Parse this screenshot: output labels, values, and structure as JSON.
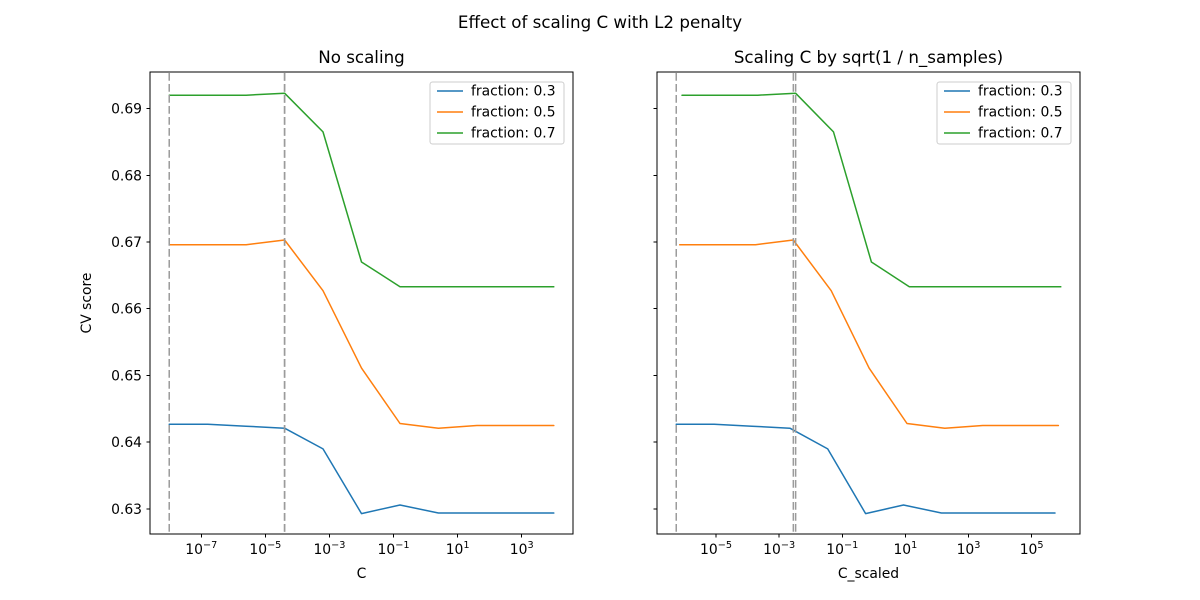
{
  "figure": {
    "suptitle": "Effect of scaling C with L2 penalty",
    "ylabel": "CV score",
    "background": "#ffffff",
    "text_color": "#000000",
    "spine_color": "#000000"
  },
  "legend": {
    "border_color": "#cccccc",
    "background": "#ffffff",
    "entries": [
      {
        "label": "fraction: 0.3",
        "color": "#1f77b4"
      },
      {
        "label": "fraction: 0.5",
        "color": "#ff7f0e"
      },
      {
        "label": "fraction: 0.7",
        "color": "#2ca02c"
      }
    ]
  },
  "chart_data": {
    "type": "line",
    "title": "Effect of scaling C with L2 penalty",
    "ylabel": "CV score",
    "ylim": [
      0.62625,
      0.69547
    ],
    "yticks": [
      0.63,
      0.64,
      0.65,
      0.66,
      0.67,
      0.68,
      0.69
    ],
    "vline_color": "#9b9b9b",
    "legend_position": "upper right",
    "grid": false,
    "subplots": [
      {
        "title": "No scaling",
        "xlabel": "C",
        "xscale": "log",
        "xlim_log10": [
          -8.6,
          4.6
        ],
        "xtick_exponents": [
          -7,
          -5,
          -3,
          -1,
          1,
          3
        ],
        "show_ytick_labels": true,
        "vlines_log10": [
          -8.0,
          -4.4,
          -4.4
        ],
        "series": [
          {
            "name": "fraction: 0.3",
            "color": "#1f77b4",
            "x_log10": [
              -8.0,
              -6.8,
              -5.6,
              -4.4,
              -3.2,
              -2.0,
              -0.8,
              0.4,
              1.6,
              2.8,
              4.0
            ],
            "values": [
              0.6427,
              0.6427,
              0.6424,
              0.6421,
              0.639,
              0.6293,
              0.6306,
              0.6294,
              0.6294,
              0.6294,
              0.6294
            ]
          },
          {
            "name": "fraction: 0.5",
            "color": "#ff7f0e",
            "x_log10": [
              -8.0,
              -6.8,
              -5.6,
              -4.4,
              -3.2,
              -2.0,
              -0.8,
              0.4,
              1.6,
              2.8,
              4.0
            ],
            "values": [
              0.6696,
              0.6696,
              0.6696,
              0.6703,
              0.6627,
              0.6511,
              0.6428,
              0.6421,
              0.6425,
              0.6425,
              0.6425
            ]
          },
          {
            "name": "fraction: 0.7",
            "color": "#2ca02c",
            "x_log10": [
              -8.0,
              -6.8,
              -5.6,
              -4.4,
              -3.2,
              -2.0,
              -0.8,
              0.4,
              1.6,
              2.8,
              4.0
            ],
            "values": [
              0.692,
              0.692,
              0.692,
              0.6923,
              0.6865,
              0.667,
              0.6633,
              0.6633,
              0.6633,
              0.6633,
              0.6633
            ]
          }
        ]
      },
      {
        "title": "Scaling C by sqrt(1 / n_samples)",
        "xlabel": "C_scaled",
        "xscale": "log",
        "xlim_log10": [
          -6.8706,
          6.5318
        ],
        "xtick_exponents": [
          -5,
          -3,
          -1,
          1,
          3,
          5
        ],
        "show_ytick_labels": false,
        "vlines_log10": [
          -6.261,
          -2.551,
          -2.478
        ],
        "series": [
          {
            "name": "fraction: 0.3",
            "color": "#1f77b4",
            "x_log10": [
              -6.261,
              -5.061,
              -3.861,
              -2.661,
              -1.461,
              -0.261,
              0.939,
              2.139,
              3.339,
              4.539,
              5.739
            ],
            "values": [
              0.6427,
              0.6427,
              0.6424,
              0.6421,
              0.639,
              0.6293,
              0.6306,
              0.6294,
              0.6294,
              0.6294,
              0.6294
            ]
          },
          {
            "name": "fraction: 0.5",
            "color": "#ff7f0e",
            "x_log10": [
              -6.151,
              -4.951,
              -3.751,
              -2.551,
              -1.351,
              -0.151,
              1.049,
              2.249,
              3.449,
              4.649,
              5.849
            ],
            "values": [
              0.6696,
              0.6696,
              0.6696,
              0.6703,
              0.6627,
              0.6511,
              0.6428,
              0.6421,
              0.6425,
              0.6425,
              0.6425
            ]
          },
          {
            "name": "fraction: 0.7",
            "color": "#2ca02c",
            "x_log10": [
              -6.078,
              -4.878,
              -3.678,
              -2.478,
              -1.278,
              -0.078,
              1.122,
              2.322,
              3.522,
              4.722,
              5.922
            ],
            "values": [
              0.692,
              0.692,
              0.692,
              0.6923,
              0.6865,
              0.667,
              0.6633,
              0.6633,
              0.6633,
              0.6633,
              0.6633
            ]
          }
        ]
      }
    ]
  }
}
